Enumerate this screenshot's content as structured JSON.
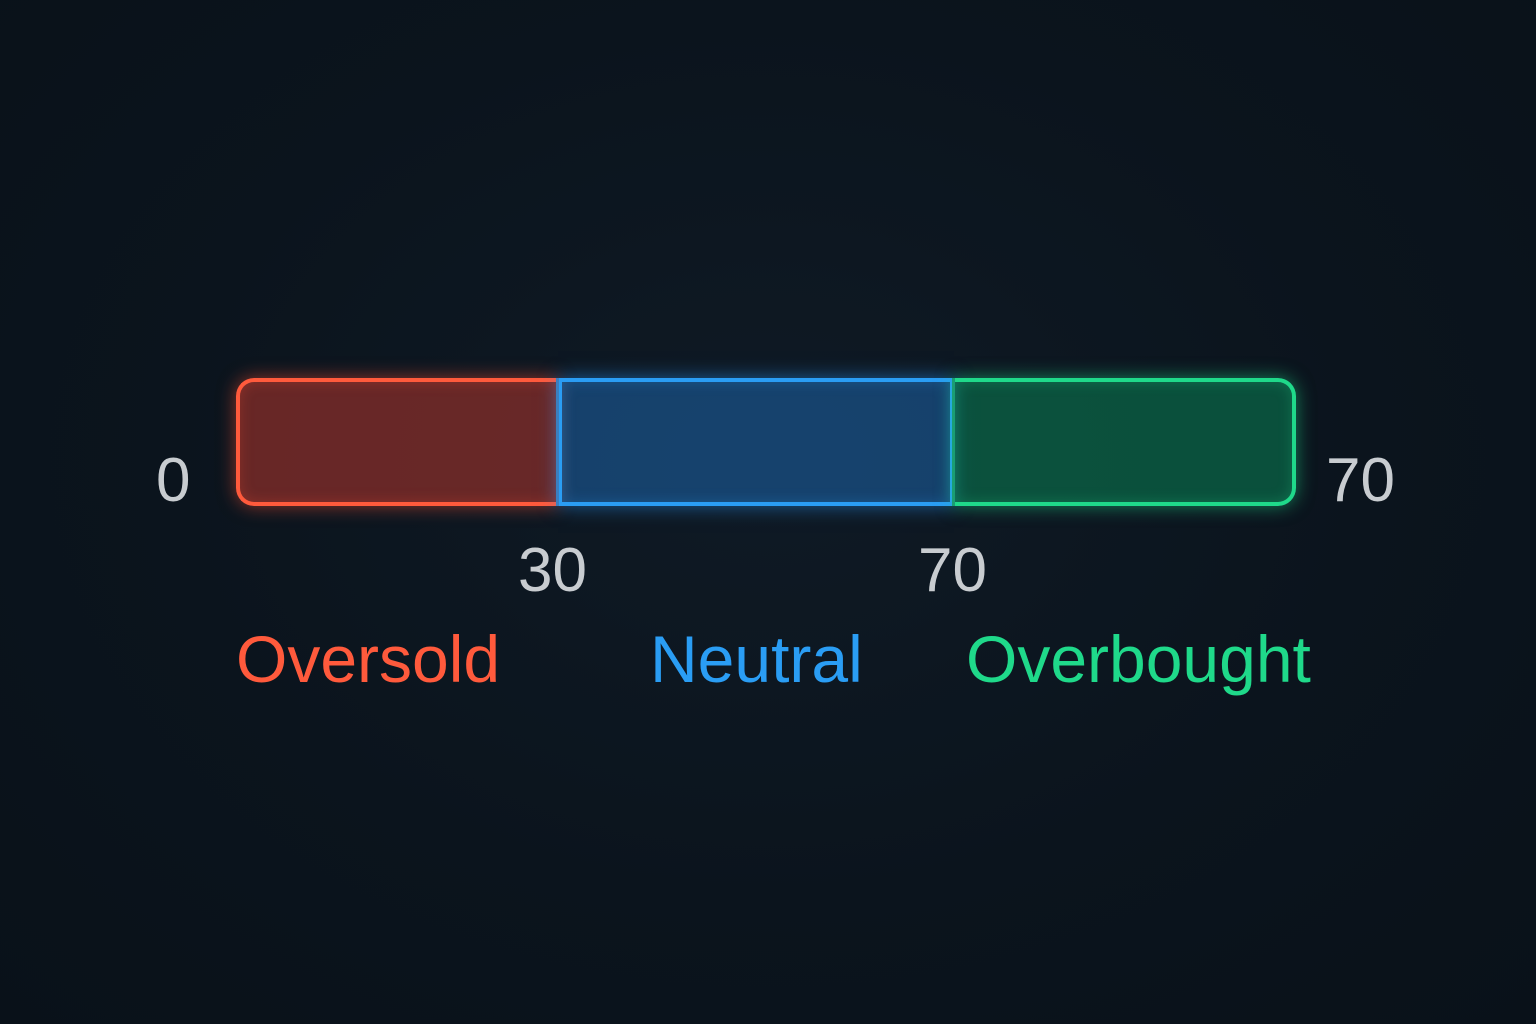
{
  "gauge": {
    "ticks": {
      "min": "0",
      "max": "70",
      "lower_threshold": "30",
      "upper_threshold": "70"
    },
    "zones": [
      {
        "label": "Oversold",
        "color": "#ff5a3c"
      },
      {
        "label": "Neutral",
        "color": "#2a9df4"
      },
      {
        "label": "Overbought",
        "color": "#1fd98a"
      }
    ]
  }
}
